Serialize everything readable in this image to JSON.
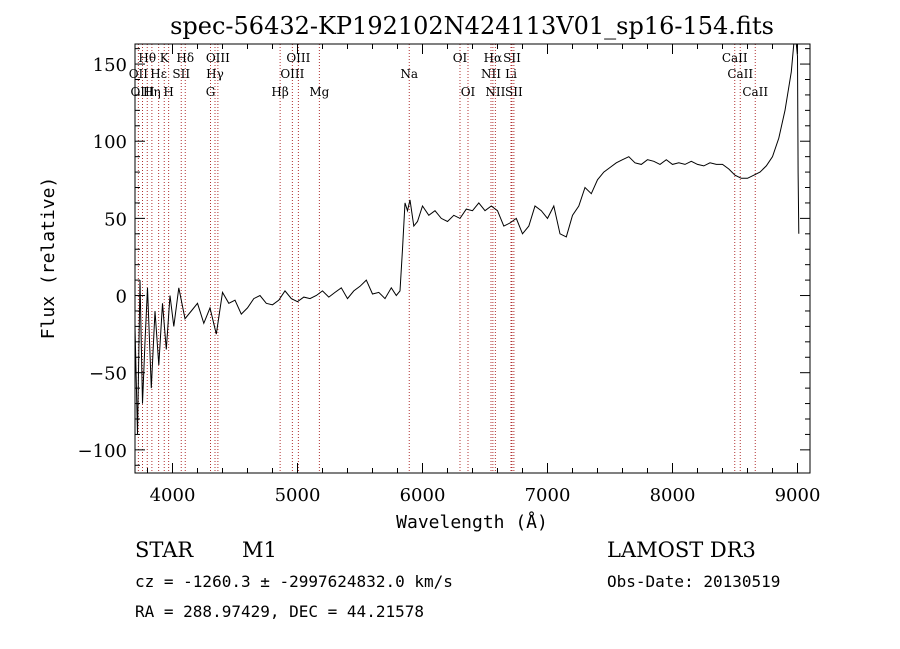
{
  "chart_data": {
    "type": "line",
    "title": "spec-56432-KP192102N424113V01_sp16-154.fits",
    "xlabel": "Wavelength (Å)",
    "ylabel": "Flux (relative)",
    "xlim": [
      3700,
      9100
    ],
    "ylim": [
      -115,
      163
    ],
    "x_ticks": [
      4000,
      5000,
      6000,
      7000,
      8000,
      9000
    ],
    "y_ticks": [
      -100,
      -50,
      0,
      50,
      100,
      150
    ],
    "series": [
      {
        "name": "flux",
        "x": [
          3700,
          3720,
          3740,
          3760,
          3780,
          3800,
          3830,
          3860,
          3890,
          3920,
          3950,
          3980,
          4010,
          4050,
          4100,
          4150,
          4200,
          4250,
          4300,
          4350,
          4400,
          4450,
          4500,
          4550,
          4600,
          4650,
          4700,
          4750,
          4800,
          4850,
          4900,
          4950,
          5000,
          5050,
          5100,
          5150,
          5200,
          5250,
          5300,
          5350,
          5400,
          5450,
          5500,
          5550,
          5600,
          5650,
          5700,
          5750,
          5790,
          5820,
          5840,
          5860,
          5880,
          5900,
          5930,
          5960,
          6000,
          6050,
          6100,
          6150,
          6200,
          6250,
          6300,
          6350,
          6400,
          6450,
          6500,
          6550,
          6600,
          6650,
          6700,
          6750,
          6800,
          6850,
          6900,
          6950,
          7000,
          7050,
          7100,
          7150,
          7200,
          7250,
          7300,
          7350,
          7400,
          7450,
          7500,
          7550,
          7600,
          7650,
          7700,
          7750,
          7800,
          7850,
          7900,
          7950,
          8000,
          8050,
          8100,
          8150,
          8200,
          8250,
          8300,
          8350,
          8400,
          8450,
          8500,
          8550,
          8600,
          8650,
          8700,
          8750,
          8800,
          8850,
          8900,
          8950,
          8970,
          8990,
          9000,
          9005,
          9010
        ],
        "y": [
          -20,
          -90,
          10,
          -70,
          -30,
          5,
          -60,
          -10,
          -45,
          -5,
          -35,
          0,
          -20,
          5,
          -15,
          -10,
          -5,
          -18,
          -8,
          -25,
          2,
          -5,
          -3,
          -12,
          -8,
          -2,
          0,
          -5,
          -6,
          -3,
          3,
          -2,
          -4,
          -1,
          -2,
          0,
          3,
          -1,
          2,
          5,
          -2,
          3,
          6,
          10,
          1,
          2,
          -2,
          5,
          0,
          3,
          30,
          60,
          55,
          62,
          45,
          48,
          58,
          52,
          55,
          50,
          48,
          52,
          50,
          56,
          55,
          60,
          55,
          58,
          55,
          45,
          47,
          50,
          40,
          45,
          58,
          55,
          50,
          58,
          40,
          38,
          52,
          58,
          70,
          66,
          75,
          80,
          83,
          86,
          88,
          90,
          86,
          85,
          88,
          87,
          85,
          88,
          85,
          86,
          85,
          87,
          85,
          84,
          86,
          85,
          85,
          82,
          78,
          76,
          76,
          78,
          80,
          84,
          90,
          102,
          120,
          145,
          165,
          163,
          155,
          80,
          40
        ]
      }
    ],
    "line_annotations": [
      {
        "label": "Hθ",
        "wavelength": 3798,
        "row": 1
      },
      {
        "label": "OII",
        "wavelength": 3727,
        "row": 2
      },
      {
        "label": "OIII",
        "wavelength": 3760,
        "row": 3
      },
      {
        "label": "Hε",
        "wavelength": 3889,
        "row": 2
      },
      {
        "label": "Hη",
        "wavelength": 3835,
        "row": 3
      },
      {
        "label": "K",
        "wavelength": 3934,
        "row": 1
      },
      {
        "label": "SII",
        "wavelength": 4070,
        "row": 2
      },
      {
        "label": "H",
        "wavelength": 3969,
        "row": 3
      },
      {
        "label": "Hδ",
        "wavelength": 4102,
        "row": 1
      },
      {
        "label": "OIII",
        "wavelength": 4363,
        "row": 1
      },
      {
        "label": "Hγ",
        "wavelength": 4340,
        "row": 2
      },
      {
        "label": "G",
        "wavelength": 4304,
        "row": 3
      },
      {
        "label": "OIII",
        "wavelength": 5007,
        "row": 1
      },
      {
        "label": "OIII",
        "wavelength": 4959,
        "row": 2
      },
      {
        "label": "Hβ",
        "wavelength": 4861,
        "row": 3
      },
      {
        "label": "Mg",
        "wavelength": 5175,
        "row": 3
      },
      {
        "label": "Na",
        "wavelength": 5894,
        "row": 2
      },
      {
        "label": "OI",
        "wavelength": 6300,
        "row": 1
      },
      {
        "label": "OI",
        "wavelength": 6364,
        "row": 3
      },
      {
        "label": "Hα",
        "wavelength": 6563,
        "row": 1
      },
      {
        "label": "SII",
        "wavelength": 6716,
        "row": 1
      },
      {
        "label": "NII",
        "wavelength": 6548,
        "row": 2
      },
      {
        "label": "Li",
        "wavelength": 6708,
        "row": 2
      },
      {
        "label": "NII",
        "wavelength": 6583,
        "row": 3
      },
      {
        "label": "SII",
        "wavelength": 6731,
        "row": 3
      },
      {
        "label": "CaII",
        "wavelength": 8498,
        "row": 1
      },
      {
        "label": "CaII",
        "wavelength": 8542,
        "row": 2
      },
      {
        "label": "CaII",
        "wavelength": 8662,
        "row": 3
      }
    ],
    "grid": false,
    "line_color": "#000000",
    "annotation_color": "#b03030"
  },
  "info": {
    "object_class": "STAR",
    "subclass": "M1",
    "survey": "LAMOST DR3",
    "redshift_line": "cz = -1260.3 ± -2997624832.0 km/s",
    "obs_date": "Obs-Date: 20130519",
    "coords": "RA = 288.97429, DEC =  44.21578"
  }
}
